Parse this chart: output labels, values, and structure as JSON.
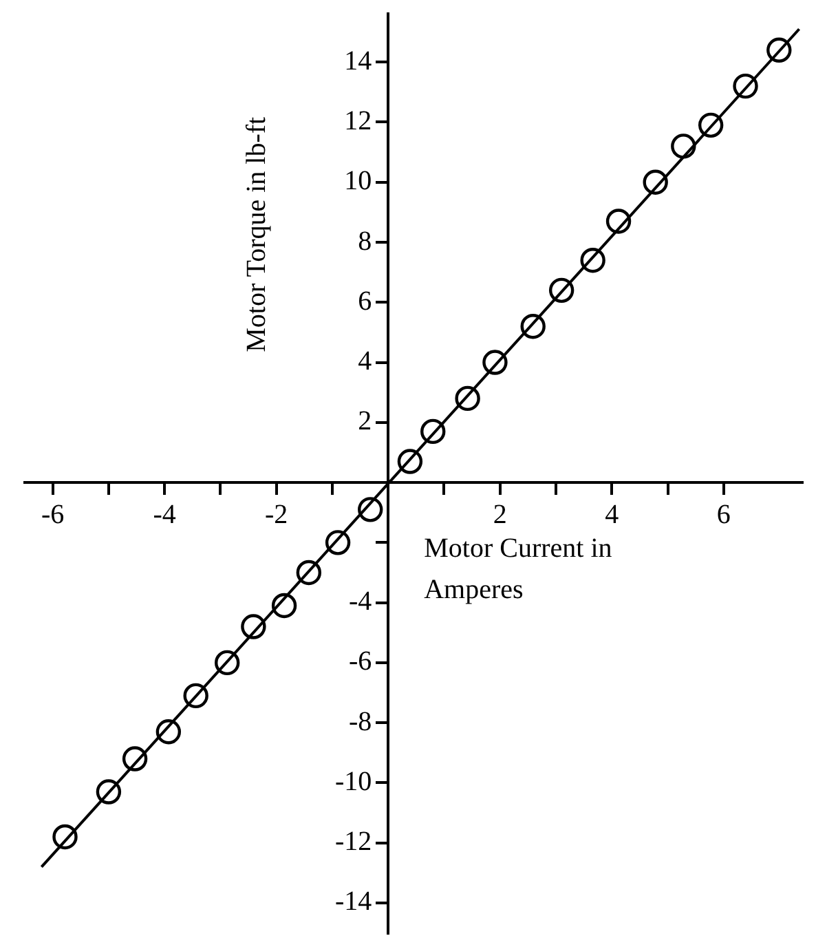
{
  "chart_data": {
    "type": "scatter",
    "xlabel": "Motor Current in Amperes",
    "ylabel": "Motor Torque in lb-ft",
    "xlim": [
      -6.5,
      7.4
    ],
    "ylim": [
      -15,
      15.6
    ],
    "xticks": [
      -6,
      {
        "value": -5,
        "label": null
      },
      -4,
      {
        "value": -3,
        "label": null
      },
      -2,
      {
        "value": -1,
        "label": null
      },
      {
        "value": 1,
        "label": null
      },
      2,
      {
        "value": 3,
        "label": null
      },
      4,
      {
        "value": 5,
        "label": null
      },
      6
    ],
    "yticks": [
      -14,
      -12,
      -10,
      -8,
      -6,
      -4,
      {
        "value": -2,
        "label": null
      },
      2,
      4,
      6,
      8,
      10,
      12,
      14
    ],
    "grid": false,
    "legend": false,
    "marker": "circle",
    "series": [
      {
        "color": "#000000",
        "x": [
          -5.78,
          -5.0,
          -4.53,
          -3.93,
          -3.44,
          -2.88,
          -2.41,
          -1.86,
          -1.42,
          -0.9,
          -0.32,
          0.39,
          0.8,
          1.42,
          1.91,
          2.59,
          3.1,
          3.66,
          4.12,
          4.78,
          5.28,
          5.77,
          6.39,
          6.99
        ],
        "values": [
          -11.8,
          -10.3,
          -9.2,
          -8.3,
          -7.1,
          -6.0,
          -4.8,
          -4.1,
          -3.0,
          -2.0,
          -0.9,
          0.7,
          1.7,
          2.8,
          4.0,
          5.2,
          6.4,
          7.4,
          8.7,
          10.0,
          11.2,
          11.9,
          13.2,
          14.4
        ]
      },
      {
        "type": "line",
        "color": "#000000",
        "line_style": "solid",
        "marker": "none",
        "x": [
          -6.2,
          7.35
        ],
        "values": [
          -12.8,
          15.1
        ]
      }
    ]
  }
}
